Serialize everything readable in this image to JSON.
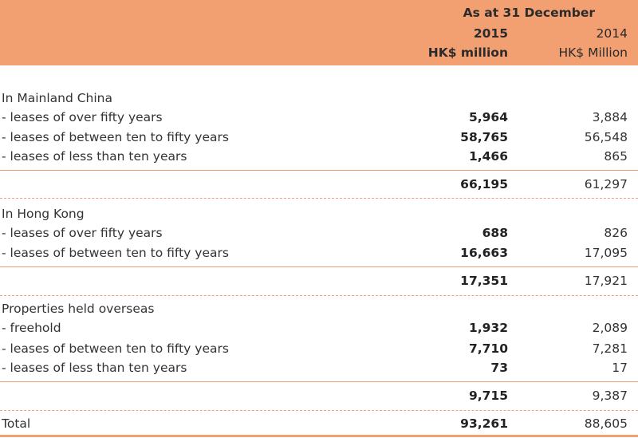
{
  "header": {
    "as_at": "As at 31 December",
    "col1_year": "2015",
    "col1_unit": "HK$ million",
    "col2_year": "2014",
    "col2_unit": "HK$ Million"
  },
  "sections": [
    {
      "title": "In Mainland China",
      "rows": [
        {
          "label": "- leases of over fifty years",
          "v2015": "5,964",
          "v2014": "3,884"
        },
        {
          "label": "- leases of between ten to fifty years",
          "v2015": "58,765",
          "v2014": "56,548"
        },
        {
          "label": "- leases of less than ten years",
          "v2015": "1,466",
          "v2014": "865"
        }
      ],
      "subtotal": {
        "v2015": "66,195",
        "v2014": "61,297"
      }
    },
    {
      "title": "In Hong Kong",
      "rows": [
        {
          "label": "- leases of over fifty years",
          "v2015": "688",
          "v2014": "826"
        },
        {
          "label": "- leases of between ten to fifty years",
          "v2015": "16,663",
          "v2014": "17,095"
        }
      ],
      "subtotal": {
        "v2015": "17,351",
        "v2014": "17,921"
      }
    },
    {
      "title": "Properties held overseas",
      "rows": [
        {
          "label": "- freehold",
          "v2015": "1,932",
          "v2014": "2,089"
        },
        {
          "label": "- leases of between ten to fifty years",
          "v2015": "7,710",
          "v2014": "7,281"
        },
        {
          "label": "- leases of less than ten years",
          "v2015": "73",
          "v2014": "17"
        }
      ],
      "subtotal": {
        "v2015": "9,715",
        "v2014": "9,387"
      }
    }
  ],
  "total": {
    "label": "Total",
    "v2015": "93,261",
    "v2014": "88,605"
  },
  "colors": {
    "accent": "#f29f72"
  }
}
